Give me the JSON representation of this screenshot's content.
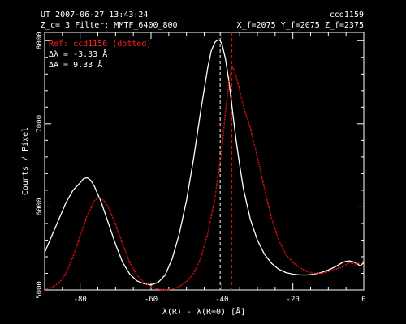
{
  "header": {
    "line1_left": "UT 2007-06-27 13:43:24",
    "line1_right": "ccd1159",
    "line2_left": "Z_c= 3  Filter: MMTF_6400_800",
    "line2_right": "X_f=2075  Y_f=2075  Z_f=2375"
  },
  "annotations": {
    "ref": "Ref:  ccd1156 (dotted)",
    "dlambda": "Δλ =    -3.33 Å",
    "dA": "ΔA =     9.33 Å"
  },
  "colors": {
    "background": "#000000",
    "main_series": "#ffffff",
    "reference_series": "#dd1111"
  },
  "chart_data": {
    "type": "line",
    "title": "",
    "xlabel": "λ(R) - λ(R=0)  [Å]",
    "ylabel": "Counts / Pixel",
    "xlim": [
      -90,
      0
    ],
    "ylim": [
      5000,
      8100
    ],
    "xticks": [
      -80,
      -60,
      -40,
      -20,
      0
    ],
    "xtick_labels": [
      "-80",
      "-60",
      "-40",
      "-20",
      "0"
    ],
    "yticks": [
      5000,
      6000,
      7000,
      8000
    ],
    "ytick_labels": [
      "5000",
      "6000",
      "7000",
      "8000"
    ],
    "vlines": [
      {
        "x": -40.5,
        "style": "dashed",
        "color": "#ffffff"
      },
      {
        "x": -37.2,
        "style": "dashed",
        "color": "#dd1111"
      }
    ],
    "series": [
      {
        "name": "ccd1159",
        "style": "solid",
        "x": [
          -90,
          -88,
          -86,
          -84,
          -82,
          -80,
          -79,
          -78,
          -77,
          -76,
          -74,
          -72,
          -70,
          -68,
          -66,
          -64,
          -62,
          -60,
          -58,
          -56,
          -54,
          -52,
          -50,
          -48,
          -46,
          -44,
          -43,
          -42,
          -41.5,
          -41,
          -40.5,
          -40,
          -39,
          -38,
          -37,
          -36,
          -35,
          -34,
          -32,
          -30,
          -28,
          -26,
          -24,
          -22,
          -20,
          -18,
          -16,
          -14,
          -12,
          -10,
          -8,
          -6,
          -5,
          -4,
          -3,
          -2,
          -1,
          0
        ],
        "y": [
          5450,
          5650,
          5850,
          6050,
          6200,
          6290,
          6340,
          6350,
          6320,
          6250,
          6050,
          5800,
          5550,
          5330,
          5190,
          5110,
          5075,
          5060,
          5090,
          5180,
          5380,
          5680,
          6080,
          6580,
          7150,
          7680,
          7880,
          7980,
          8000,
          8010,
          8000,
          7960,
          7780,
          7500,
          7150,
          6800,
          6500,
          6230,
          5850,
          5600,
          5430,
          5320,
          5250,
          5210,
          5190,
          5180,
          5180,
          5190,
          5210,
          5240,
          5280,
          5330,
          5345,
          5350,
          5340,
          5320,
          5290,
          5330
        ]
      },
      {
        "name": "ccd1156",
        "style": "dotted",
        "x": [
          -90,
          -88,
          -86,
          -84,
          -82,
          -80,
          -78,
          -76,
          -75,
          -74,
          -73,
          -72,
          -70,
          -68,
          -66,
          -64,
          -62,
          -60,
          -58,
          -56,
          -54,
          -52,
          -50,
          -48,
          -46,
          -44,
          -42,
          -40,
          -39,
          -38,
          -37.5,
          -37,
          -36.5,
          -36,
          -35,
          -34,
          -32,
          -30,
          -28,
          -26,
          -24,
          -22,
          -20,
          -18,
          -16,
          -14,
          -12,
          -10,
          -8,
          -6,
          -4,
          -2,
          0
        ],
        "y": [
          5010,
          5030,
          5080,
          5200,
          5400,
          5650,
          5900,
          6070,
          6110,
          6100,
          6060,
          5990,
          5790,
          5550,
          5330,
          5180,
          5090,
          5040,
          5010,
          5000,
          5010,
          5040,
          5100,
          5200,
          5380,
          5680,
          6100,
          6700,
          7150,
          7500,
          7640,
          7680,
          7640,
          7570,
          7400,
          7220,
          6950,
          6600,
          6220,
          5860,
          5600,
          5430,
          5330,
          5270,
          5220,
          5200,
          5200,
          5220,
          5250,
          5280,
          5330,
          5310,
          5350
        ]
      }
    ]
  }
}
